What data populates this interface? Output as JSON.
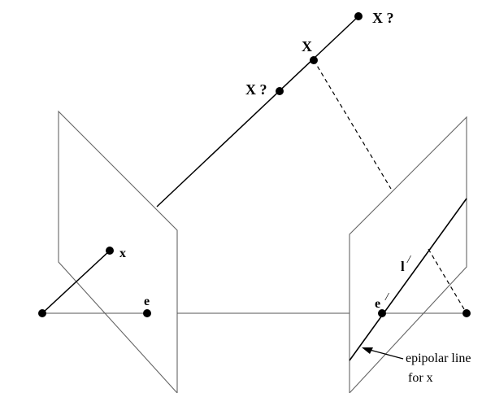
{
  "labels": {
    "X": "X",
    "X_far": "X ?",
    "X_near": "X ?",
    "x": "x",
    "e": "e",
    "e_prime_letter": "e",
    "l_prime_letter": "l",
    "prime_mark": "/",
    "annotation_line1": "epipolar line",
    "annotation_line2": "for x"
  },
  "colors": {
    "plane_edges": "#666666",
    "lines": "#000000",
    "points": "#000000"
  }
}
